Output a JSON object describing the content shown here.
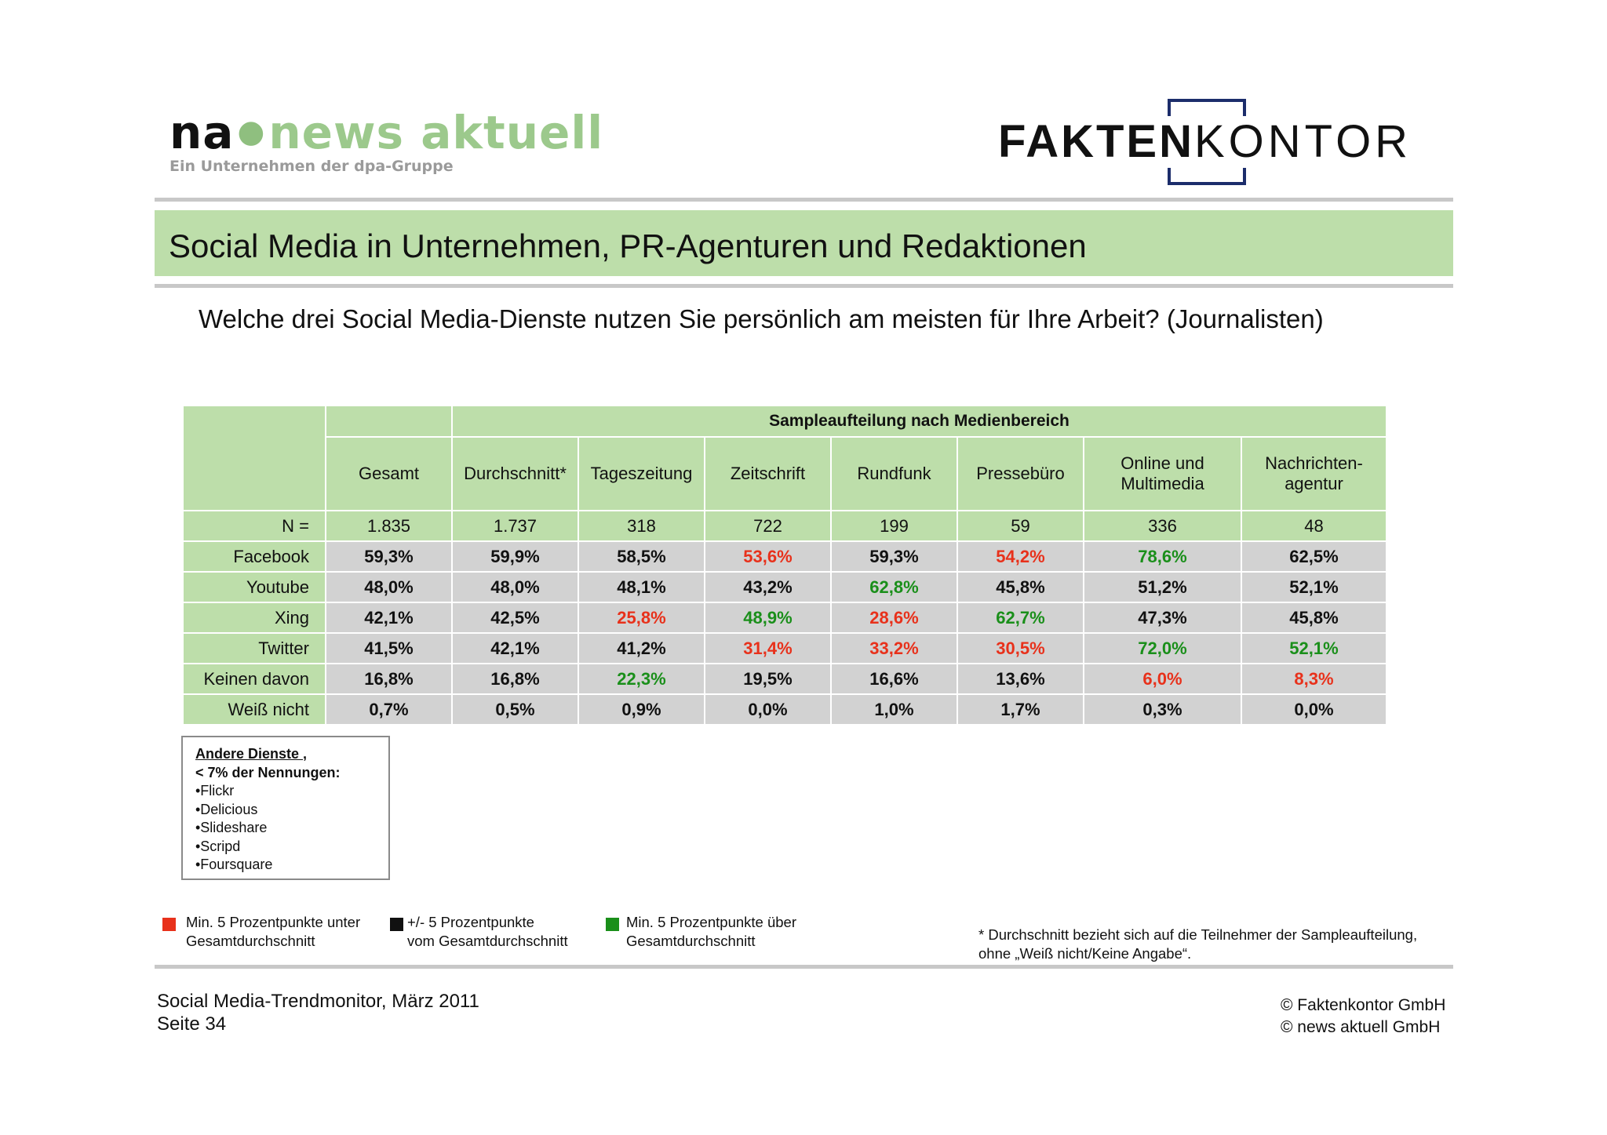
{
  "logos": {
    "news_aktuell": {
      "prefix": "na",
      "name": "news aktuell",
      "subtitle": "Ein Unternehmen der dpa-Gruppe"
    },
    "faktenkontor": {
      "bold_part": "FAKTEN",
      "light_part": "KONTOR",
      "accent": "#1c2d6b"
    }
  },
  "title": "Social Media in Unternehmen, PR-Agenturen und Redaktionen",
  "question": "Welche drei Social Media-Dienste nutzen Sie persönlich am meisten für Ihre Arbeit? (Journalisten)",
  "table": {
    "group_header": "Sampleaufteilung nach Medienbereich",
    "columns": [
      "Gesamt",
      "Durchschnitt*",
      "Tageszeitung",
      "Zeitschrift",
      "Rundfunk",
      "Pressebüro",
      "Online und Multimedia",
      "Nachrichten-agentur"
    ],
    "n_label": "N =",
    "n_values": [
      "1.835",
      "1.737",
      "318",
      "722",
      "199",
      "59",
      "336",
      "48"
    ],
    "rows": [
      {
        "label": "Facebook",
        "values": [
          "59,3%",
          "59,9%",
          "58,5%",
          "53,6%",
          "59,3%",
          "54,2%",
          "78,6%",
          "62,5%"
        ],
        "colors": [
          "black",
          "black",
          "black",
          "red",
          "black",
          "red",
          "green",
          "black"
        ]
      },
      {
        "label": "Youtube",
        "values": [
          "48,0%",
          "48,0%",
          "48,1%",
          "43,2%",
          "62,8%",
          "45,8%",
          "51,2%",
          "52,1%"
        ],
        "colors": [
          "black",
          "black",
          "black",
          "black",
          "green",
          "black",
          "black",
          "black"
        ]
      },
      {
        "label": "Xing",
        "values": [
          "42,1%",
          "42,5%",
          "25,8%",
          "48,9%",
          "28,6%",
          "62,7%",
          "47,3%",
          "45,8%"
        ],
        "colors": [
          "black",
          "black",
          "red",
          "green",
          "red",
          "green",
          "black",
          "black"
        ]
      },
      {
        "label": "Twitter",
        "values": [
          "41,5%",
          "42,1%",
          "41,2%",
          "31,4%",
          "33,2%",
          "30,5%",
          "72,0%",
          "52,1%"
        ],
        "colors": [
          "black",
          "black",
          "black",
          "red",
          "red",
          "red",
          "green",
          "green"
        ]
      },
      {
        "label": "Keinen davon",
        "values": [
          "16,8%",
          "16,8%",
          "22,3%",
          "19,5%",
          "16,6%",
          "13,6%",
          "6,0%",
          "8,3%"
        ],
        "colors": [
          "black",
          "black",
          "green",
          "black",
          "black",
          "black",
          "red",
          "red"
        ]
      },
      {
        "label": "Weiß nicht",
        "values": [
          "0,7%",
          "0,5%",
          "0,9%",
          "0,0%",
          "1,0%",
          "1,7%",
          "0,3%",
          "0,0%"
        ],
        "colors": [
          "black",
          "black",
          "black",
          "black",
          "black",
          "black",
          "black",
          "black"
        ]
      }
    ]
  },
  "other_services": {
    "title": "Andere Dienste ,",
    "subtitle": "< 7% der Nennungen:",
    "items": [
      "•Flickr",
      "•Delicious",
      "•Slideshare",
      "•Scripd",
      "•Foursquare"
    ]
  },
  "legend": [
    {
      "color": "#e8311b",
      "line1": "Min. 5 Prozentpunkte unter",
      "line2": "Gesamtdurchschnitt"
    },
    {
      "color": "#111111",
      "line1": "+/- 5 Prozentpunkte",
      "line2": "vom Gesamtdurchschnitt"
    },
    {
      "color": "#1a8f1a",
      "line1": "Min. 5 Prozentpunkte über",
      "line2": "Gesamtdurchschnitt"
    }
  ],
  "footnote": {
    "line1": "* Durchschnitt bezieht sich auf die Teilnehmer der Sampleaufteilung,",
    "line2": "ohne „Weiß nicht/Keine Angabe“."
  },
  "footer": {
    "report": "Social Media-Trendmonitor, März 2011",
    "page": "Seite 34",
    "copyright1": "© Faktenkontor GmbH",
    "copyright2": "© news aktuell GmbH"
  }
}
